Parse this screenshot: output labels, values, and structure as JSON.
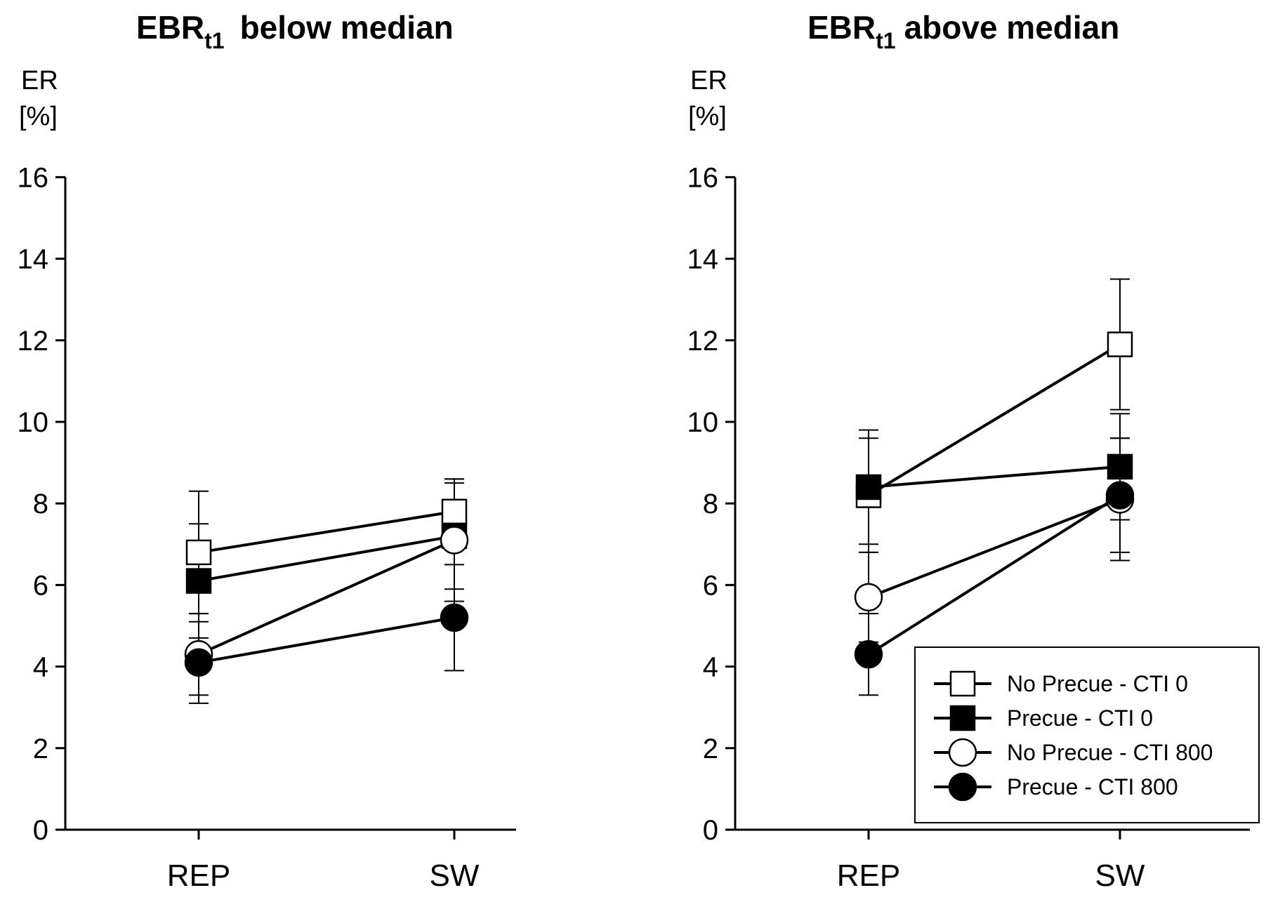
{
  "chart_data": [
    {
      "type": "line",
      "title": "EBRt1  below median",
      "title_main": "EBR",
      "title_sub": "t1",
      "title_rest": "below median",
      "ylabel_line1": "ER",
      "ylabel_line2": "[%]",
      "xlabel": "",
      "categories": [
        "REP",
        "SW"
      ],
      "ylim": [
        0,
        16
      ],
      "yticks": [
        0,
        2,
        4,
        6,
        8,
        10,
        12,
        14,
        16
      ],
      "grid": false,
      "series": [
        {
          "name": "No Precue - CTI 0",
          "marker": "square-open",
          "values": [
            6.8,
            7.8
          ],
          "errors": [
            1.5,
            0.8
          ]
        },
        {
          "name": "Precue - CTI 0",
          "marker": "square-filled",
          "values": [
            6.1,
            7.2
          ],
          "errors": [
            1.4,
            1.3
          ]
        },
        {
          "name": "No Precue - CTI 800",
          "marker": "circle-open",
          "values": [
            4.3,
            7.1
          ],
          "errors": [
            1.0,
            1.5
          ]
        },
        {
          "name": "Precue - CTI 800",
          "marker": "circle-filled",
          "values": [
            4.1,
            5.2
          ],
          "errors": [
            1.0,
            1.3
          ]
        }
      ]
    },
    {
      "type": "line",
      "title": "EBRt1 above median",
      "title_main": "EBR",
      "title_sub": "t1",
      "title_rest": "above median",
      "ylabel_line1": "ER",
      "ylabel_line2": "[%]",
      "xlabel": "",
      "categories": [
        "REP",
        "SW"
      ],
      "ylim": [
        0,
        16
      ],
      "yticks": [
        0,
        2,
        4,
        6,
        8,
        10,
        12,
        14,
        16
      ],
      "grid": false,
      "legend_position": "bottom-right",
      "series": [
        {
          "name": "No Precue - CTI 0",
          "marker": "square-open",
          "values": [
            8.2,
            11.9
          ],
          "errors": [
            1.4,
            1.6
          ]
        },
        {
          "name": "Precue - CTI 0",
          "marker": "square-filled",
          "values": [
            8.4,
            8.9
          ],
          "errors": [
            1.4,
            1.3
          ]
        },
        {
          "name": "No Precue - CTI 800",
          "marker": "circle-open",
          "values": [
            5.7,
            8.1
          ],
          "errors": [
            1.1,
            1.5
          ]
        },
        {
          "name": "Precue - CTI 800",
          "marker": "circle-filled",
          "values": [
            4.3,
            8.2
          ],
          "errors": [
            1.0,
            1.4
          ]
        }
      ]
    }
  ]
}
